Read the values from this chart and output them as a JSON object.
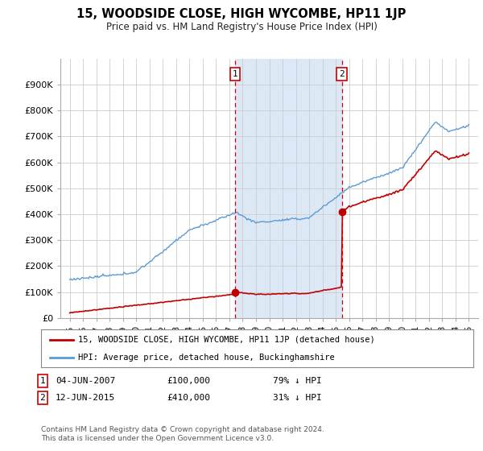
{
  "title": "15, WOODSIDE CLOSE, HIGH WYCOMBE, HP11 1JP",
  "subtitle": "Price paid vs. HM Land Registry's House Price Index (HPI)",
  "legend_line1": "15, WOODSIDE CLOSE, HIGH WYCOMBE, HP11 1JP (detached house)",
  "legend_line2": "HPI: Average price, detached house, Buckinghamshire",
  "footnote": "Contains HM Land Registry data © Crown copyright and database right 2024.\nThis data is licensed under the Open Government Licence v3.0.",
  "transactions": [
    {
      "label": "1",
      "date": "04-JUN-2007",
      "price": "£100,000",
      "pct": "79% ↓ HPI",
      "x": 2007.44
    },
    {
      "label": "2",
      "date": "12-JUN-2015",
      "price": "£410,000",
      "pct": "31% ↓ HPI",
      "x": 2015.45
    }
  ],
  "hpi_color": "#5b9bd5",
  "hpi_shade_color": "#dce8f5",
  "price_color": "#c00000",
  "dashed_color": "#cc0000",
  "background_color": "#ffffff",
  "plot_bg_color": "#ffffff",
  "grid_color": "#cccccc",
  "ylim": [
    0,
    1000000
  ],
  "ytick_max": 900000,
  "xlim_start": 1994.3,
  "xlim_end": 2025.7
}
